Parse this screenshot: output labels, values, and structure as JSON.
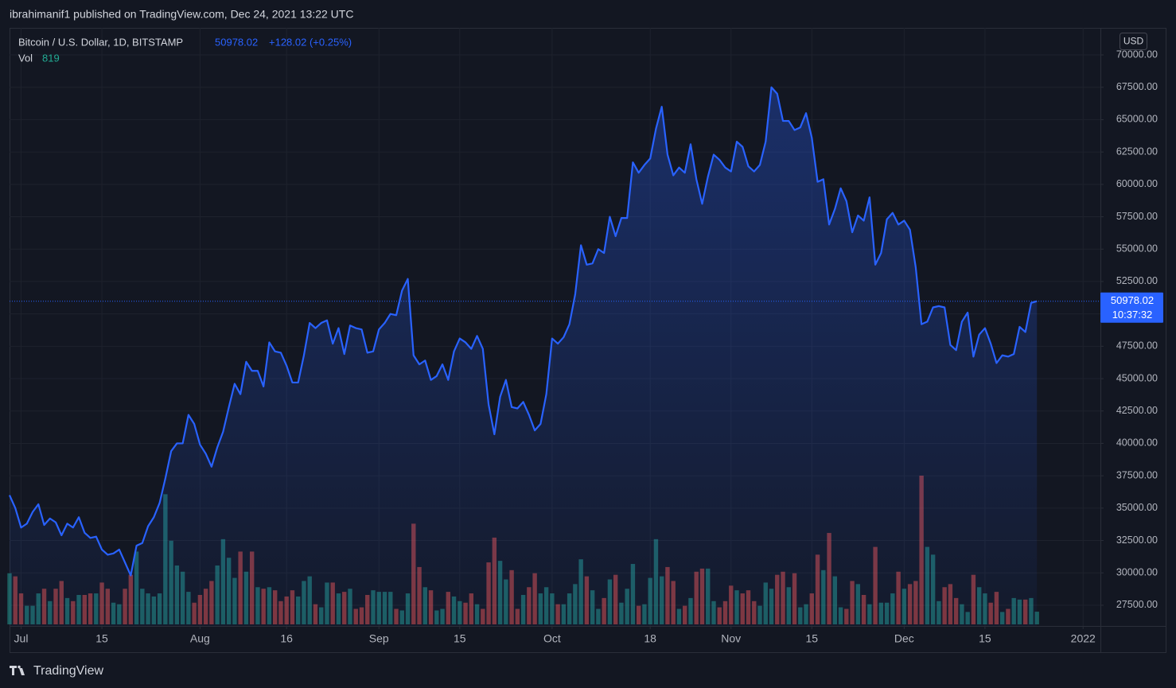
{
  "header": "ibrahimanif1 published on TradingView.com, Dec 24, 2021 13:22 UTC",
  "brand": "TradingView",
  "chart_data": {
    "type": "line",
    "currency": "USD",
    "countdown": "10:37:32",
    "change_label": "+128.02 (+0.25%)",
    "line_color": "#2962ff",
    "up_color": "#26a69a",
    "down_color": "#ef5350",
    "grid": true,
    "ylim": [
      25900,
      72090
    ],
    "yticks": [
      {
        "value": 27500,
        "label": "27500.00"
      },
      {
        "value": 30000,
        "label": "30000.00"
      },
      {
        "value": 32500,
        "label": "32500.00"
      },
      {
        "value": 35000,
        "label": "35000.00"
      },
      {
        "value": 37500,
        "label": "37500.00"
      },
      {
        "value": 40000,
        "label": "40000.00"
      },
      {
        "value": 42500,
        "label": "42500.00"
      },
      {
        "value": 45000,
        "label": "45000.00"
      },
      {
        "value": 47500,
        "label": "47500.00"
      },
      {
        "value": 50000,
        "label": "50000.00"
      },
      {
        "value": 52500,
        "label": "52500.00"
      },
      {
        "value": 55000,
        "label": "55000.00"
      },
      {
        "value": 57500,
        "label": "57500.00"
      },
      {
        "value": 60000,
        "label": "60000.00"
      },
      {
        "value": 62500,
        "label": "62500.00"
      },
      {
        "value": 65000,
        "label": "65000.00"
      },
      {
        "value": 67500,
        "label": "67500.00"
      },
      {
        "value": 70000,
        "label": "70000.00"
      }
    ],
    "xlim": [
      "2021-06-29",
      "2022-01-04"
    ],
    "xticks": [
      {
        "value": "2021-07-01",
        "label": "Jul"
      },
      {
        "value": "2021-07-15",
        "label": "15"
      },
      {
        "value": "2021-08-01",
        "label": "Aug"
      },
      {
        "value": "2021-08-16",
        "label": "16"
      },
      {
        "value": "2021-09-01",
        "label": "Sep"
      },
      {
        "value": "2021-09-15",
        "label": "15"
      },
      {
        "value": "2021-10-01",
        "label": "Oct"
      },
      {
        "value": "2021-10-18",
        "label": "18"
      },
      {
        "value": "2021-11-01",
        "label": "Nov"
      },
      {
        "value": "2021-11-15",
        "label": "15"
      },
      {
        "value": "2021-12-01",
        "label": "Dec"
      },
      {
        "value": "2021-12-15",
        "label": "15"
      },
      {
        "value": "2022-01-01",
        "label": "2022"
      }
    ],
    "x": [
      "2021-06-29",
      "2021-06-30",
      "2021-07-01",
      "2021-07-02",
      "2021-07-03",
      "2021-07-04",
      "2021-07-05",
      "2021-07-06",
      "2021-07-07",
      "2021-07-08",
      "2021-07-09",
      "2021-07-10",
      "2021-07-11",
      "2021-07-12",
      "2021-07-13",
      "2021-07-14",
      "2021-07-15",
      "2021-07-16",
      "2021-07-17",
      "2021-07-18",
      "2021-07-19",
      "2021-07-20",
      "2021-07-21",
      "2021-07-22",
      "2021-07-23",
      "2021-07-24",
      "2021-07-25",
      "2021-07-26",
      "2021-07-27",
      "2021-07-28",
      "2021-07-29",
      "2021-07-30",
      "2021-07-31",
      "2021-08-01",
      "2021-08-02",
      "2021-08-03",
      "2021-08-04",
      "2021-08-05",
      "2021-08-06",
      "2021-08-07",
      "2021-08-08",
      "2021-08-09",
      "2021-08-10",
      "2021-08-11",
      "2021-08-12",
      "2021-08-13",
      "2021-08-14",
      "2021-08-15",
      "2021-08-16",
      "2021-08-17",
      "2021-08-18",
      "2021-08-19",
      "2021-08-20",
      "2021-08-21",
      "2021-08-22",
      "2021-08-23",
      "2021-08-24",
      "2021-08-25",
      "2021-08-26",
      "2021-08-27",
      "2021-08-28",
      "2021-08-29",
      "2021-08-30",
      "2021-08-31",
      "2021-09-01",
      "2021-09-02",
      "2021-09-03",
      "2021-09-04",
      "2021-09-05",
      "2021-09-06",
      "2021-09-07",
      "2021-09-08",
      "2021-09-09",
      "2021-09-10",
      "2021-09-11",
      "2021-09-12",
      "2021-09-13",
      "2021-09-14",
      "2021-09-15",
      "2021-09-16",
      "2021-09-17",
      "2021-09-18",
      "2021-09-19",
      "2021-09-20",
      "2021-09-21",
      "2021-09-22",
      "2021-09-23",
      "2021-09-24",
      "2021-09-25",
      "2021-09-26",
      "2021-09-27",
      "2021-09-28",
      "2021-09-29",
      "2021-09-30",
      "2021-10-01",
      "2021-10-02",
      "2021-10-03",
      "2021-10-04",
      "2021-10-05",
      "2021-10-06",
      "2021-10-07",
      "2021-10-08",
      "2021-10-09",
      "2021-10-10",
      "2021-10-11",
      "2021-10-12",
      "2021-10-13",
      "2021-10-14",
      "2021-10-15",
      "2021-10-16",
      "2021-10-17",
      "2021-10-18",
      "2021-10-19",
      "2021-10-20",
      "2021-10-21",
      "2021-10-22",
      "2021-10-23",
      "2021-10-24",
      "2021-10-25",
      "2021-10-26",
      "2021-10-27",
      "2021-10-28",
      "2021-10-29",
      "2021-10-30",
      "2021-10-31",
      "2021-11-01",
      "2021-11-02",
      "2021-11-03",
      "2021-11-04",
      "2021-11-05",
      "2021-11-06",
      "2021-11-07",
      "2021-11-08",
      "2021-11-09",
      "2021-11-10",
      "2021-11-11",
      "2021-11-12",
      "2021-11-13",
      "2021-11-14",
      "2021-11-15",
      "2021-11-16",
      "2021-11-17",
      "2021-11-18",
      "2021-11-19",
      "2021-11-20",
      "2021-11-21",
      "2021-11-22",
      "2021-11-23",
      "2021-11-24",
      "2021-11-25",
      "2021-11-26",
      "2021-11-27",
      "2021-11-28",
      "2021-11-29",
      "2021-11-30",
      "2021-12-01",
      "2021-12-02",
      "2021-12-03",
      "2021-12-04",
      "2021-12-05",
      "2021-12-06",
      "2021-12-07",
      "2021-12-08",
      "2021-12-09",
      "2021-12-10",
      "2021-12-11",
      "2021-12-12",
      "2021-12-13",
      "2021-12-14",
      "2021-12-15",
      "2021-12-16",
      "2021-12-17",
      "2021-12-18",
      "2021-12-19",
      "2021-12-20",
      "2021-12-21",
      "2021-12-22",
      "2021-12-23",
      "2021-12-24"
    ],
    "series": [
      {
        "name": "Bitcoin / U.S. Dollar, 1D, BITSTAMP",
        "values": [
          36000,
          35000,
          33500,
          33800,
          34700,
          35300,
          33700,
          34200,
          33900,
          32900,
          33800,
          33500,
          34300,
          33100,
          32700,
          32800,
          31800,
          31400,
          31500,
          31800,
          30800,
          29800,
          32100,
          32300,
          33600,
          34300,
          35400,
          37300,
          39400,
          40000,
          40000,
          42200,
          41500,
          39900,
          39200,
          38200,
          39700,
          40900,
          42800,
          44600,
          43800,
          46300,
          45600,
          45600,
          44400,
          47800,
          47100,
          47000,
          46000,
          44700,
          44700,
          46800,
          49300,
          48900,
          49300,
          49500,
          47700,
          48900,
          46900,
          49100,
          48900,
          48800,
          47000,
          47100,
          48800,
          49300,
          50000,
          49900,
          51800,
          52700,
          46800,
          46100,
          46400,
          44900,
          45200,
          46100,
          44900,
          47100,
          48100,
          47800,
          47300,
          48300,
          47300,
          43000,
          40700,
          43600,
          44900,
          42800,
          42700,
          43200,
          42200,
          41000,
          41500,
          43800,
          48100,
          47700,
          48200,
          49200,
          51500,
          55300,
          53800,
          53900,
          55000,
          54700,
          57500,
          56000,
          57400,
          57400,
          61700,
          60900,
          61500,
          62000,
          64300,
          66000,
          62300,
          60700,
          61300,
          60900,
          63100,
          60400,
          58500,
          60600,
          62300,
          61900,
          61300,
          61000,
          63300,
          62900,
          61400,
          61000,
          61500,
          63300,
          67500,
          67000,
          64900,
          64900,
          64200,
          64400,
          65500,
          63600,
          60200,
          60400,
          56900,
          58100,
          59700,
          58700,
          56300,
          57600,
          57200,
          59000,
          53800,
          54700,
          57300,
          57800,
          56900,
          57200,
          56500,
          53600,
          49200,
          49400,
          50500,
          50600,
          50500,
          47600,
          47200,
          49400,
          50100,
          46700,
          48400,
          48900,
          47700,
          46200,
          46800,
          46700,
          46900,
          49000,
          48600,
          50850,
          50978.02
        ]
      },
      {
        "name": "Vol",
        "type": "bar",
        "values": [
          3300,
          3100,
          2000,
          1200,
          1200,
          2000,
          2300,
          1500,
          2300,
          2800,
          1700,
          1500,
          1900,
          1900,
          2000,
          2000,
          2700,
          2300,
          1400,
          1300,
          2300,
          3200,
          4700,
          2300,
          2000,
          1800,
          2000,
          8400,
          5400,
          3800,
          3400,
          2100,
          1400,
          1900,
          2300,
          2800,
          3800,
          5500,
          4300,
          3000,
          4700,
          3400,
          4700,
          2400,
          2300,
          2400,
          2200,
          1500,
          1800,
          2200,
          1800,
          2800,
          3100,
          1300,
          1100,
          2700,
          2700,
          2000,
          2100,
          2300,
          1000,
          1100,
          1900,
          2200,
          2100,
          2100,
          2100,
          1000,
          900,
          2000,
          6500,
          3700,
          2400,
          2200,
          900,
          1000,
          2100,
          1800,
          1500,
          1400,
          2000,
          1300,
          1000,
          4000,
          5600,
          4100,
          2900,
          3500,
          1000,
          1900,
          2400,
          3300,
          2000,
          2400,
          2000,
          1300,
          1300,
          2000,
          2600,
          4200,
          3100,
          2200,
          1000,
          1700,
          2900,
          3200,
          1400,
          2300,
          3900,
          1200,
          1300,
          3000,
          5500,
          3100,
          3700,
          2800,
          1000,
          1200,
          1700,
          3400,
          3600,
          3600,
          1500,
          1100,
          1500,
          2500,
          2200,
          2000,
          2200,
          1500,
          1200,
          2700,
          2300,
          3200,
          3400,
          2400,
          3300,
          1100,
          1300,
          2000,
          4500,
          3500,
          5900,
          3100,
          1100,
          1000,
          2800,
          2600,
          1900,
          1300,
          5000,
          1400,
          1400,
          2000,
          3400,
          2300,
          2600,
          2800,
          9600,
          5000,
          4500,
          1500,
          2400,
          2600,
          1700,
          1300,
          800,
          3200,
          2400,
          2000,
          1400,
          2100,
          800,
          1000,
          1700,
          1600,
          1600,
          1700,
          819
        ]
      }
    ]
  }
}
